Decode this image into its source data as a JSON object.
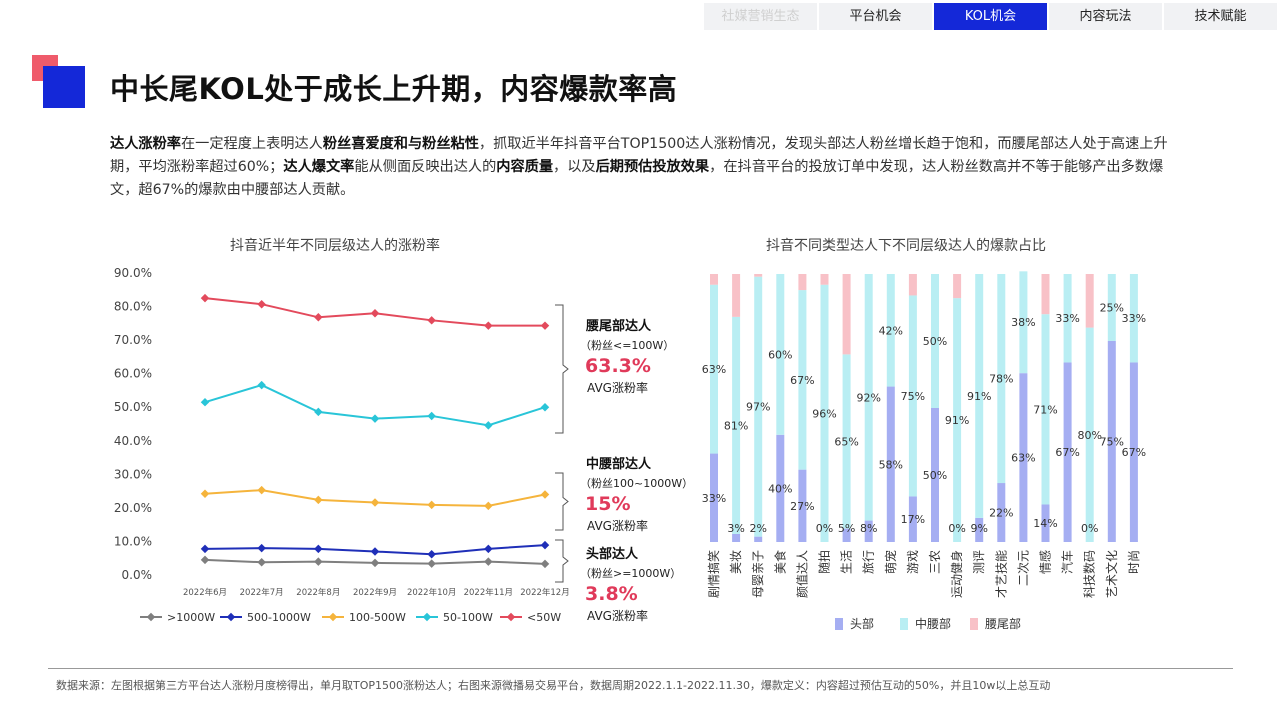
{
  "nav": {
    "tabs": [
      {
        "label": "社媒营销生态",
        "state": "faded"
      },
      {
        "label": "平台机会",
        "state": "normal"
      },
      {
        "label": "KOL机会",
        "state": "active"
      },
      {
        "label": "内容玩法",
        "state": "normal"
      },
      {
        "label": "技术赋能",
        "state": "normal"
      }
    ]
  },
  "page": {
    "title": "中长尾KOL处于成长上升期，内容爆款率高",
    "intro": [
      {
        "t": "达人涨粉率",
        "b": true
      },
      {
        "t": "在一定程度上表明达人",
        "b": false
      },
      {
        "t": "粉丝喜爱度和与粉丝粘性",
        "b": true
      },
      {
        "t": "，抓取近半年抖音平台TOP1500达人涨粉情况，发现头部达人粉丝增长趋于饱和，而腰尾部达人处于高速上升期，平均涨粉率超过60%；",
        "b": false
      },
      {
        "t": "达人爆文率",
        "b": true
      },
      {
        "t": "能从侧面反映出达人的",
        "b": false
      },
      {
        "t": "内容质量",
        "b": true
      },
      {
        "t": "，以及",
        "b": false
      },
      {
        "t": "后期预估投放效果",
        "b": true
      },
      {
        "t": "，在抖音平台的投放订单中发现，达人粉丝数高并不等于能够产出多数爆文，超67%的爆款由中腰部达人贡献。",
        "b": false
      }
    ],
    "source": "数据来源：左图根据第三方平台达人涨粉月度榜得出，单月取TOP1500涨粉达人；右图来源微播易交易平台，数据周期2022.1.1-2022.11.30，爆款定义：内容超过预估互动的50%，并且10w以上总互动"
  },
  "chart_data": [
    {
      "type": "line",
      "title": "抖音近半年不同层级达人的涨粉率",
      "x": [
        "2022年6月",
        "2022年7月",
        "2022年8月",
        "2022年9月",
        "2022年10月",
        "2022年11月",
        "2022年12月"
      ],
      "yticks": [
        "0.0%",
        "10.0%",
        "20.0%",
        "30.0%",
        "40.0%",
        "50.0%",
        "60.0%",
        "70.0%",
        "80.0%",
        "90.0%"
      ],
      "ylim": [
        0,
        90
      ],
      "legend_position": "bottom",
      "series": [
        {
          "name": ">1000W",
          "color": "#7f7f7f",
          "values": [
            4.5,
            3.8,
            4.0,
            3.6,
            3.4,
            4.0,
            3.3
          ]
        },
        {
          "name": "500-1000W",
          "color": "#1f2fb8",
          "values": [
            7.8,
            8.0,
            7.8,
            7.0,
            6.2,
            7.8,
            8.9
          ]
        },
        {
          "name": "100-500W",
          "color": "#f5b43c",
          "values": [
            24.2,
            25.3,
            22.4,
            21.6,
            20.9,
            20.6,
            24.0
          ]
        },
        {
          "name": "50-100W",
          "color": "#29c5d8",
          "values": [
            51.5,
            56.6,
            48.6,
            46.6,
            47.4,
            44.6,
            50.0
          ]
        },
        {
          "name": "<50W",
          "color": "#e34a5c",
          "values": [
            82.5,
            80.7,
            76.8,
            78.0,
            75.9,
            74.3,
            74.3
          ]
        }
      ],
      "annotations": [
        {
          "name": "腰尾部达人",
          "sub": "（粉丝<=100W）",
          "value": "63.3%",
          "avg": "AVG涨粉率"
        },
        {
          "name": "中腰部达人",
          "sub": "（粉丝100~1000W）",
          "value": "15%",
          "avg": "AVG涨粉率"
        },
        {
          "name": "头部达人",
          "sub": "（粉丝>=1000W）",
          "value": "3.8%",
          "avg": "AVG涨粉率"
        }
      ]
    },
    {
      "type": "bar",
      "stacked": true,
      "percent": true,
      "title": "抖音不同类型达人下不同层级达人的爆款占比",
      "categories": [
        "剧情搞笑",
        "美妆",
        "母婴亲子",
        "美食",
        "颜值达人",
        "随拍",
        "生活",
        "旅行",
        "萌宠",
        "游戏",
        "三农",
        "运动健身",
        "测评",
        "才艺技能",
        "二次元",
        "情感",
        "汽车",
        "科技数码",
        "艺术文化",
        "时尚"
      ],
      "legend_position": "bottom",
      "series": [
        {
          "name": "头部",
          "color": "#a5aef2",
          "values": [
            33,
            3,
            2,
            40,
            27,
            0,
            5,
            8,
            58,
            17,
            50,
            0,
            9,
            22,
            63,
            14,
            67,
            0,
            75,
            67
          ]
        },
        {
          "name": "中腰部",
          "color": "#b9eef3",
          "values": [
            63,
            81,
            97,
            60,
            67,
            96,
            65,
            92,
            42,
            75,
            50,
            91,
            91,
            78,
            38,
            71,
            33,
            80,
            25,
            33
          ]
        },
        {
          "name": "腰尾部",
          "color": "#f8c1c7",
          "values": [
            4,
            16,
            1,
            0,
            6,
            4,
            30,
            0,
            0,
            8,
            0,
            9,
            0,
            0,
            0,
            15,
            0,
            20,
            0,
            0
          ]
        }
      ],
      "data_labels": {
        "头部": [
          "33%",
          "3%",
          "2%",
          "40%",
          "27%",
          "0%",
          "5%",
          "8%",
          "58%",
          "17%",
          "50%",
          "0%",
          "9%",
          "22%",
          "63%",
          "14%",
          "67%",
          "0%",
          "75%",
          "67%"
        ],
        "中腰部": [
          "63%",
          "81%",
          "97%",
          "60%",
          "67%",
          "96%",
          "65%",
          "92%",
          "42%",
          "75%",
          "50%",
          "91%",
          "91%",
          "78%",
          "38%",
          "71%",
          "33%",
          "80%",
          "25%",
          "33%"
        ]
      }
    }
  ]
}
